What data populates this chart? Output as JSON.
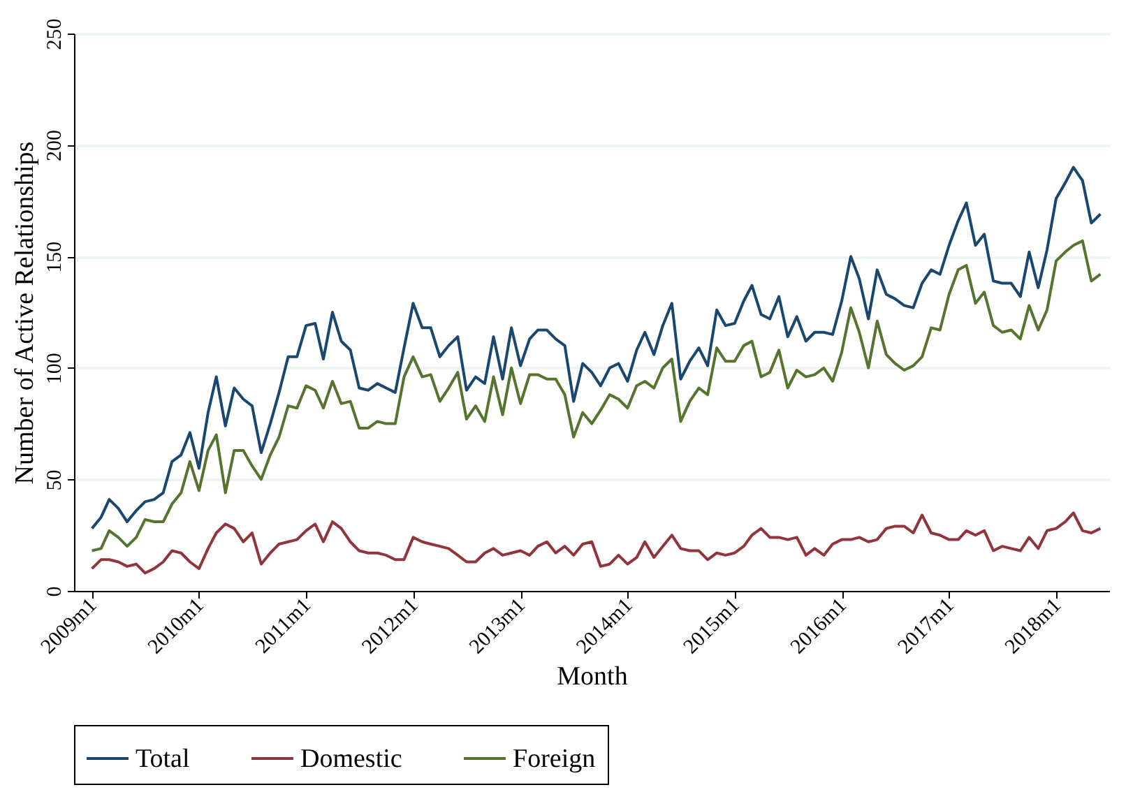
{
  "chart_data": {
    "type": "line",
    "xlabel": "Month",
    "ylabel": "Number of Active Relationships",
    "xlim": [
      "2008-11",
      "2018-07"
    ],
    "xticks": [
      {
        "value": "2009-01",
        "label": "2009m1"
      },
      {
        "value": "2010-01",
        "label": "2010m1"
      },
      {
        "value": "2011-01",
        "label": "2011m1"
      },
      {
        "value": "2012-01",
        "label": "2012m1"
      },
      {
        "value": "2013-01",
        "label": "2013m1"
      },
      {
        "value": "2014-01",
        "label": "2014m1"
      },
      {
        "value": "2015-01",
        "label": "2015m1"
      },
      {
        "value": "2016-01",
        "label": "2016m1"
      },
      {
        "value": "2017-01",
        "label": "2017m1"
      },
      {
        "value": "2018-01",
        "label": "2018m1"
      }
    ],
    "ylim": [
      0,
      250
    ],
    "yticks": [
      0,
      50,
      100,
      150,
      200,
      250
    ],
    "grid": "y",
    "legend": "bottom",
    "marker": "none",
    "line_style": "solid",
    "x": [
      "2009-01",
      "2009-02",
      "2009-03",
      "2009-04",
      "2009-05",
      "2009-06",
      "2009-07",
      "2009-08",
      "2009-09",
      "2009-10",
      "2009-11",
      "2009-12",
      "2010-01",
      "2010-02",
      "2010-03",
      "2010-04",
      "2010-05",
      "2010-06",
      "2010-07",
      "2010-08",
      "2010-09",
      "2010-10",
      "2010-11",
      "2010-12",
      "2011-01",
      "2011-02",
      "2011-03",
      "2011-04",
      "2011-05",
      "2011-06",
      "2011-07",
      "2011-08",
      "2011-09",
      "2011-10",
      "2011-11",
      "2011-12",
      "2012-01",
      "2012-02",
      "2012-03",
      "2012-04",
      "2012-05",
      "2012-06",
      "2012-07",
      "2012-08",
      "2012-09",
      "2012-10",
      "2012-11",
      "2012-12",
      "2013-01",
      "2013-02",
      "2013-03",
      "2013-04",
      "2013-05",
      "2013-06",
      "2013-07",
      "2013-08",
      "2013-09",
      "2013-10",
      "2013-11",
      "2013-12",
      "2014-01",
      "2014-02",
      "2014-03",
      "2014-04",
      "2014-05",
      "2014-06",
      "2014-07",
      "2014-08",
      "2014-09",
      "2014-10",
      "2014-11",
      "2014-12",
      "2015-01",
      "2015-02",
      "2015-03",
      "2015-04",
      "2015-05",
      "2015-06",
      "2015-07",
      "2015-08",
      "2015-09",
      "2015-10",
      "2015-11",
      "2015-12",
      "2016-01",
      "2016-02",
      "2016-03",
      "2016-04",
      "2016-05",
      "2016-06",
      "2016-07",
      "2016-08",
      "2016-09",
      "2016-10",
      "2016-11",
      "2016-12",
      "2017-01",
      "2017-02",
      "2017-03",
      "2017-04",
      "2017-05",
      "2017-06",
      "2017-07",
      "2017-08",
      "2017-09",
      "2017-10",
      "2017-11",
      "2017-12",
      "2018-01",
      "2018-02",
      "2018-03",
      "2018-04",
      "2018-05",
      "2018-06"
    ],
    "series": [
      {
        "name": "Total",
        "color": "#1a476f",
        "values": [
          28,
          33,
          41,
          37,
          31,
          36,
          40,
          41,
          44,
          58,
          61,
          71,
          55,
          80,
          96,
          74,
          91,
          86,
          83,
          62,
          75,
          89,
          105,
          105,
          119,
          120,
          104,
          125,
          112,
          108,
          91,
          90,
          93,
          91,
          89,
          109,
          129,
          118,
          118,
          105,
          110,
          114,
          90,
          96,
          93,
          114,
          95,
          118,
          101,
          113,
          117,
          117,
          113,
          110,
          85,
          102,
          98,
          92,
          100,
          102,
          94,
          108,
          116,
          106,
          119,
          129,
          95,
          103,
          109,
          101,
          126,
          119,
          120,
          130,
          137,
          124,
          122,
          132,
          114,
          123,
          112,
          116,
          116,
          115,
          130,
          150,
          140,
          122,
          144,
          133,
          131,
          128,
          127,
          138,
          144,
          142,
          155,
          166,
          174,
          155,
          160,
          139,
          138,
          138,
          132,
          152,
          136,
          153,
          176,
          183,
          190,
          184,
          165,
          169
        ]
      },
      {
        "name": "Domestic",
        "color": "#90353b",
        "values": [
          10,
          14,
          14,
          13,
          11,
          12,
          8,
          10,
          13,
          18,
          17,
          13,
          10,
          19,
          26,
          30,
          28,
          22,
          26,
          12,
          17,
          21,
          22,
          23,
          27,
          30,
          22,
          31,
          28,
          22,
          18,
          17,
          17,
          16,
          14,
          14,
          24,
          22,
          21,
          20,
          19,
          16,
          13,
          13,
          17,
          19,
          16,
          17,
          18,
          16,
          20,
          22,
          17,
          20,
          16,
          21,
          22,
          11,
          12,
          16,
          12,
          15,
          22,
          15,
          20,
          25,
          19,
          18,
          18,
          14,
          17,
          16,
          17,
          20,
          25,
          28,
          24,
          24,
          23,
          24,
          16,
          19,
          16,
          21,
          23,
          23,
          24,
          22,
          23,
          28,
          29,
          29,
          26,
          34,
          26,
          25,
          23,
          23,
          27,
          25,
          27,
          18,
          20,
          19,
          18,
          24,
          19,
          27,
          28,
          31,
          35,
          27,
          26,
          28
        ]
      },
      {
        "name": "Foreign",
        "color": "#55752f",
        "values": [
          18,
          19,
          27,
          24,
          20,
          24,
          32,
          31,
          31,
          39,
          44,
          58,
          45,
          63,
          70,
          44,
          63,
          63,
          56,
          50,
          61,
          69,
          83,
          82,
          92,
          90,
          82,
          94,
          84,
          85,
          73,
          73,
          76,
          75,
          75,
          96,
          105,
          96,
          97,
          85,
          91,
          98,
          77,
          83,
          76,
          96,
          79,
          100,
          84,
          97,
          97,
          95,
          95,
          88,
          69,
          80,
          75,
          81,
          88,
          86,
          82,
          92,
          94,
          91,
          100,
          104,
          76,
          85,
          91,
          88,
          109,
          103,
          103,
          110,
          112,
          96,
          98,
          108,
          91,
          99,
          96,
          97,
          100,
          94,
          107,
          127,
          116,
          100,
          121,
          106,
          102,
          99,
          101,
          105,
          118,
          117,
          133,
          144,
          146,
          129,
          134,
          119,
          116,
          117,
          113,
          128,
          117,
          126,
          148,
          152,
          155,
          157,
          139,
          142
        ]
      }
    ]
  }
}
